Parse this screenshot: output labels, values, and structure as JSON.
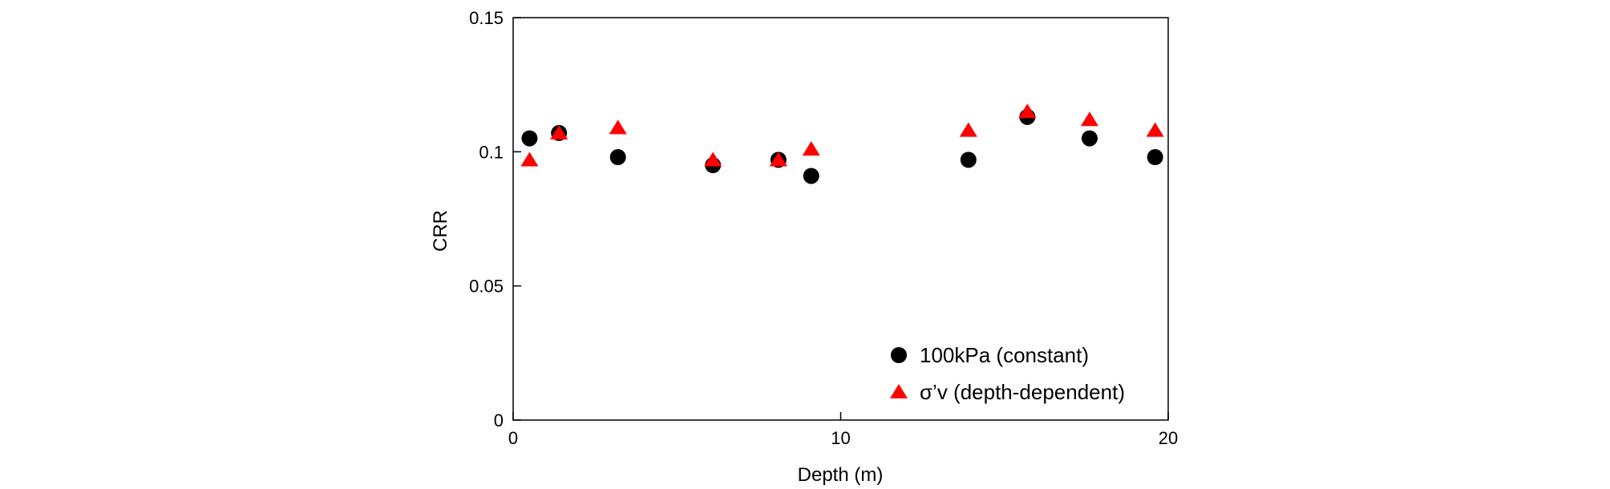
{
  "chart_data": {
    "type": "scatter",
    "title": "",
    "xlabel": "Depth (m)",
    "ylabel": "CRR",
    "xlim": [
      0,
      20
    ],
    "ylim": [
      0,
      0.15
    ],
    "xticks": [
      0,
      10,
      20
    ],
    "xtick_labels": [
      "0",
      "10",
      "20"
    ],
    "yticks": [
      0,
      0.05,
      0.1,
      0.15
    ],
    "ytick_labels": [
      "0",
      "0.05",
      "0.1",
      "0.15"
    ],
    "grid": false,
    "legend_position": "bottom-right",
    "series": [
      {
        "name": "100kPa (constant)",
        "marker": "circle",
        "color": "#000000",
        "x": [
          0.5,
          1.4,
          3.2,
          6.1,
          8.1,
          9.1,
          13.9,
          15.7,
          17.6,
          19.6
        ],
        "y": [
          0.105,
          0.107,
          0.098,
          0.095,
          0.097,
          0.091,
          0.097,
          0.113,
          0.105,
          0.098
        ]
      },
      {
        "name": "σ’v (depth-dependent)",
        "marker": "triangle",
        "color": "#ff0000",
        "x": [
          0.5,
          1.4,
          3.2,
          6.1,
          8.1,
          9.1,
          13.9,
          15.7,
          17.6,
          19.6
        ],
        "y": [
          0.097,
          0.107,
          0.109,
          0.097,
          0.097,
          0.101,
          0.108,
          0.115,
          0.112,
          0.108
        ]
      }
    ]
  }
}
